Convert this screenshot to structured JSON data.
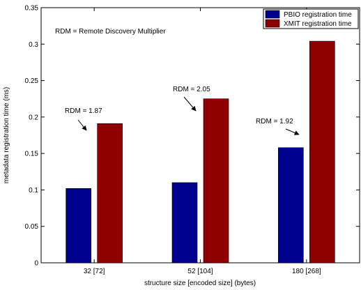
{
  "chart_data": {
    "type": "bar",
    "title": "",
    "xlabel": "structure size [encoded size] (bytes)",
    "ylabel": "metadata registration time (ms)",
    "ylim": [
      0,
      0.35
    ],
    "yticks": [
      0,
      0.05,
      0.1,
      0.15,
      0.2,
      0.25,
      0.3,
      0.35
    ],
    "ytick_labels": [
      "0",
      "0.05",
      "0.1",
      "0.15",
      "0.2",
      "0.25",
      "0.3",
      "0.35"
    ],
    "categories": [
      "32 [72]",
      "52 [104]",
      "180 [268]"
    ],
    "series": [
      {
        "name": "PBIO registration time",
        "color": "#00008f",
        "values": [
          0.102,
          0.11,
          0.158
        ]
      },
      {
        "name": "XMIT registration time",
        "color": "#8f0000",
        "values": [
          0.191,
          0.225,
          0.304
        ]
      }
    ],
    "legend_position": "top-right",
    "grid": false,
    "note": "RDM = Remote Discovery Multiplier",
    "annotations": [
      {
        "text": "RDM = 1.87",
        "category_index": 0
      },
      {
        "text": "RDM = 2.05",
        "category_index": 1
      },
      {
        "text": "RDM = 1.92",
        "category_index": 2
      }
    ]
  }
}
